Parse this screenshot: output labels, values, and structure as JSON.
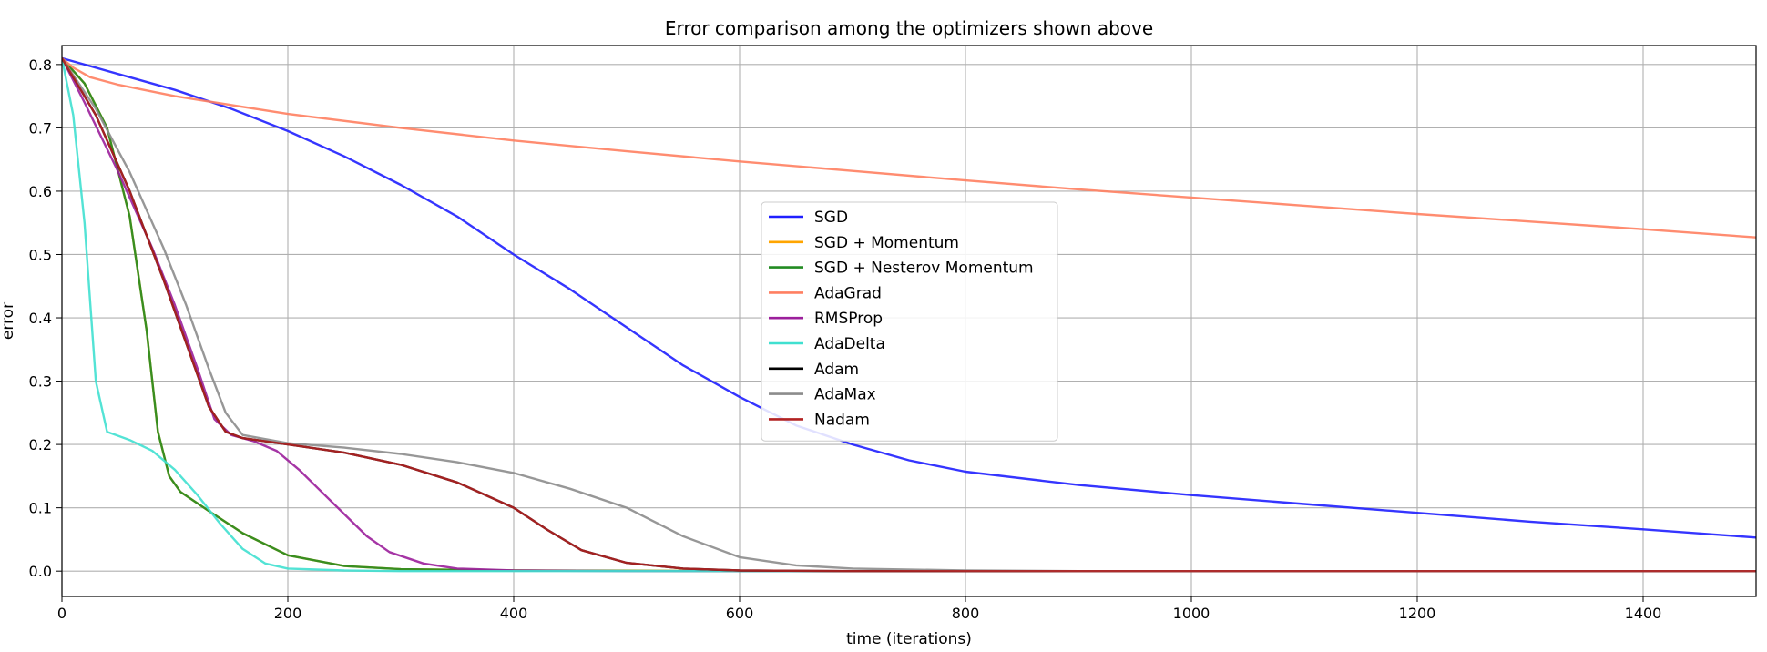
{
  "chart_data": {
    "type": "line",
    "title": "Error comparison among the optimizers shown above",
    "xlabel": "time (iterations)",
    "ylabel": "error",
    "xlim": [
      0,
      1500
    ],
    "ylim": [
      -0.04,
      0.83
    ],
    "x_ticks": [
      0,
      200,
      400,
      600,
      800,
      1000,
      1200,
      1400
    ],
    "y_ticks": [
      0.0,
      0.1,
      0.2,
      0.3,
      0.4,
      0.5,
      0.6,
      0.7,
      0.8
    ],
    "x_tick_labels": [
      "0",
      "200",
      "400",
      "600",
      "800",
      "1000",
      "1200",
      "1400"
    ],
    "y_tick_labels": [
      "0.0",
      "0.1",
      "0.2",
      "0.3",
      "0.4",
      "0.5",
      "0.6",
      "0.7",
      "0.8"
    ],
    "grid": true,
    "legend_position": "center",
    "series": [
      {
        "name": "SGD",
        "color": "#1f1fff",
        "points": [
          [
            0,
            0.81
          ],
          [
            50,
            0.785
          ],
          [
            100,
            0.76
          ],
          [
            150,
            0.73
          ],
          [
            200,
            0.695
          ],
          [
            250,
            0.655
          ],
          [
            300,
            0.61
          ],
          [
            350,
            0.56
          ],
          [
            400,
            0.5
          ],
          [
            450,
            0.445
          ],
          [
            500,
            0.385
          ],
          [
            550,
            0.325
          ],
          [
            600,
            0.275
          ],
          [
            650,
            0.23
          ],
          [
            700,
            0.2
          ],
          [
            750,
            0.175
          ],
          [
            800,
            0.157
          ],
          [
            900,
            0.136
          ],
          [
            1000,
            0.12
          ],
          [
            1100,
            0.106
          ],
          [
            1200,
            0.092
          ],
          [
            1300,
            0.078
          ],
          [
            1400,
            0.066
          ],
          [
            1500,
            0.053
          ]
        ]
      },
      {
        "name": "SGD + Momentum",
        "color": "#ffa500",
        "points": [
          [
            0,
            0.81
          ],
          [
            20,
            0.77
          ],
          [
            40,
            0.7
          ],
          [
            60,
            0.56
          ],
          [
            75,
            0.38
          ],
          [
            85,
            0.22
          ],
          [
            95,
            0.15
          ],
          [
            105,
            0.125
          ],
          [
            130,
            0.095
          ],
          [
            160,
            0.06
          ],
          [
            200,
            0.025
          ],
          [
            250,
            0.008
          ],
          [
            300,
            0.003
          ],
          [
            400,
            0.001
          ],
          [
            600,
            0.0
          ],
          [
            1500,
            0.0
          ]
        ]
      },
      {
        "name": "SGD + Nesterov Momentum",
        "color": "#228b22",
        "points": [
          [
            0,
            0.81
          ],
          [
            20,
            0.77
          ],
          [
            40,
            0.7
          ],
          [
            60,
            0.56
          ],
          [
            75,
            0.38
          ],
          [
            85,
            0.22
          ],
          [
            95,
            0.15
          ],
          [
            105,
            0.125
          ],
          [
            130,
            0.095
          ],
          [
            160,
            0.06
          ],
          [
            200,
            0.025
          ],
          [
            250,
            0.008
          ],
          [
            300,
            0.003
          ],
          [
            400,
            0.001
          ],
          [
            600,
            0.0
          ],
          [
            1500,
            0.0
          ]
        ]
      },
      {
        "name": "AdaGrad",
        "color": "#ff7f61",
        "points": [
          [
            0,
            0.81
          ],
          [
            10,
            0.795
          ],
          [
            25,
            0.78
          ],
          [
            50,
            0.768
          ],
          [
            100,
            0.75
          ],
          [
            200,
            0.722
          ],
          [
            300,
            0.7
          ],
          [
            400,
            0.68
          ],
          [
            500,
            0.663
          ],
          [
            600,
            0.647
          ],
          [
            700,
            0.632
          ],
          [
            800,
            0.617
          ],
          [
            900,
            0.603
          ],
          [
            1000,
            0.59
          ],
          [
            1100,
            0.577
          ],
          [
            1200,
            0.564
          ],
          [
            1300,
            0.552
          ],
          [
            1400,
            0.54
          ],
          [
            1500,
            0.527
          ]
        ]
      },
      {
        "name": "RMSProp",
        "color": "#9b1f9b",
        "points": [
          [
            0,
            0.81
          ],
          [
            20,
            0.74
          ],
          [
            50,
            0.63
          ],
          [
            80,
            0.51
          ],
          [
            100,
            0.42
          ],
          [
            120,
            0.32
          ],
          [
            135,
            0.24
          ],
          [
            150,
            0.215
          ],
          [
            170,
            0.205
          ],
          [
            190,
            0.19
          ],
          [
            210,
            0.16
          ],
          [
            230,
            0.125
          ],
          [
            250,
            0.09
          ],
          [
            270,
            0.055
          ],
          [
            290,
            0.03
          ],
          [
            320,
            0.012
          ],
          [
            350,
            0.004
          ],
          [
            400,
            0.001
          ],
          [
            500,
            0.0
          ],
          [
            1500,
            0.0
          ]
        ]
      },
      {
        "name": "AdaDelta",
        "color": "#40e0d0",
        "points": [
          [
            0,
            0.81
          ],
          [
            10,
            0.72
          ],
          [
            20,
            0.55
          ],
          [
            30,
            0.3
          ],
          [
            40,
            0.22
          ],
          [
            60,
            0.207
          ],
          [
            80,
            0.19
          ],
          [
            100,
            0.16
          ],
          [
            120,
            0.12
          ],
          [
            140,
            0.075
          ],
          [
            160,
            0.035
          ],
          [
            180,
            0.012
          ],
          [
            200,
            0.004
          ],
          [
            250,
            0.001
          ],
          [
            300,
            0.0
          ],
          [
            1500,
            0.0
          ]
        ]
      },
      {
        "name": "Adam",
        "color": "#000000",
        "points": [
          [
            0,
            0.81
          ],
          [
            30,
            0.72
          ],
          [
            60,
            0.6
          ],
          [
            90,
            0.46
          ],
          [
            110,
            0.36
          ],
          [
            130,
            0.26
          ],
          [
            145,
            0.22
          ],
          [
            160,
            0.21
          ],
          [
            200,
            0.2
          ],
          [
            250,
            0.187
          ],
          [
            300,
            0.168
          ],
          [
            350,
            0.14
          ],
          [
            400,
            0.1
          ],
          [
            430,
            0.065
          ],
          [
            460,
            0.033
          ],
          [
            500,
            0.013
          ],
          [
            550,
            0.004
          ],
          [
            600,
            0.001
          ],
          [
            700,
            0.0
          ],
          [
            1500,
            0.0
          ]
        ]
      },
      {
        "name": "AdaMax",
        "color": "#8c8c8c",
        "points": [
          [
            0,
            0.81
          ],
          [
            30,
            0.73
          ],
          [
            60,
            0.63
          ],
          [
            90,
            0.51
          ],
          [
            110,
            0.42
          ],
          [
            130,
            0.32
          ],
          [
            145,
            0.25
          ],
          [
            160,
            0.215
          ],
          [
            200,
            0.202
          ],
          [
            250,
            0.195
          ],
          [
            300,
            0.185
          ],
          [
            350,
            0.172
          ],
          [
            400,
            0.155
          ],
          [
            450,
            0.13
          ],
          [
            500,
            0.1
          ],
          [
            550,
            0.055
          ],
          [
            600,
            0.022
          ],
          [
            650,
            0.009
          ],
          [
            700,
            0.004
          ],
          [
            800,
            0.001
          ],
          [
            900,
            0.0
          ],
          [
            1500,
            0.0
          ]
        ]
      },
      {
        "name": "Nadam",
        "color": "#b22222",
        "points": [
          [
            0,
            0.81
          ],
          [
            30,
            0.72
          ],
          [
            60,
            0.6
          ],
          [
            90,
            0.46
          ],
          [
            110,
            0.36
          ],
          [
            130,
            0.26
          ],
          [
            145,
            0.22
          ],
          [
            160,
            0.21
          ],
          [
            200,
            0.2
          ],
          [
            250,
            0.187
          ],
          [
            300,
            0.168
          ],
          [
            350,
            0.14
          ],
          [
            400,
            0.1
          ],
          [
            430,
            0.065
          ],
          [
            460,
            0.033
          ],
          [
            500,
            0.013
          ],
          [
            550,
            0.004
          ],
          [
            600,
            0.001
          ],
          [
            700,
            0.0
          ],
          [
            1500,
            0.0
          ]
        ]
      }
    ]
  }
}
